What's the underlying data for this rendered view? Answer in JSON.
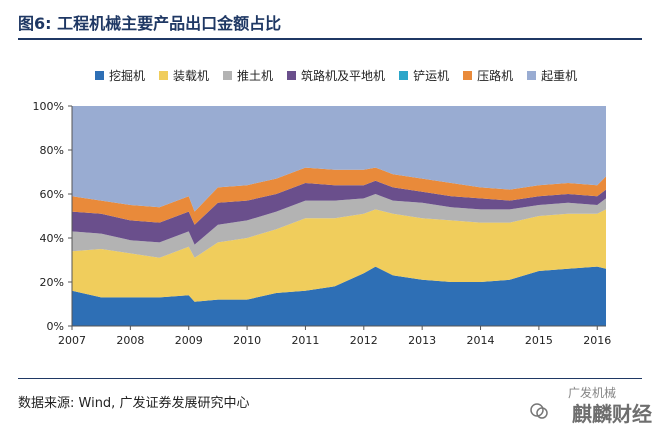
{
  "figure": {
    "title": "图6:  工程机械主要产品出口金额占比",
    "source": "数据来源: Wind, 广发证券发展研究中心",
    "watermark_main": "麒麟财经",
    "watermark_small": "广发机械"
  },
  "chart_data": {
    "type": "area",
    "stacked": true,
    "percent": true,
    "title": "",
    "xlabel": "",
    "ylabel": "",
    "ylim": [
      0,
      100
    ],
    "yticks": [
      "0%",
      "20%",
      "40%",
      "60%",
      "80%",
      "100%"
    ],
    "xticks": [
      "2007",
      "2008",
      "2009",
      "2010",
      "2011",
      "2012",
      "2013",
      "2014",
      "2015",
      "2016"
    ],
    "grid": true,
    "legend_position": "top",
    "x": [
      2007.0,
      2007.5,
      2008.0,
      2008.5,
      2009.0,
      2009.1,
      2009.5,
      2010.0,
      2010.5,
      2011.0,
      2011.5,
      2012.0,
      2012.2,
      2012.5,
      2013.0,
      2013.5,
      2014.0,
      2014.5,
      2015.0,
      2015.5,
      2016.0,
      2016.15
    ],
    "series": [
      {
        "name": "挖掘机",
        "color": "#2e6fb5",
        "values": [
          16,
          13,
          13,
          13,
          14,
          11,
          12,
          12,
          15,
          16,
          18,
          24,
          27,
          23,
          21,
          20,
          20,
          21,
          25,
          26,
          27,
          26
        ]
      },
      {
        "name": "装载机",
        "color": "#f0cd5c",
        "values": [
          18,
          22,
          20,
          18,
          22,
          20,
          26,
          28,
          29,
          33,
          31,
          27,
          26,
          28,
          28,
          28,
          27,
          26,
          25,
          25,
          24,
          27
        ]
      },
      {
        "name": "推土机",
        "color": "#b3b3b3",
        "values": [
          9,
          7,
          6,
          7,
          7,
          6,
          8,
          8,
          8,
          8,
          8,
          7,
          7,
          6,
          7,
          6,
          6,
          6,
          5,
          5,
          4,
          5
        ]
      },
      {
        "name": "筑路机及平地机",
        "color": "#6a4f8c",
        "values": [
          9,
          9,
          9,
          9,
          9,
          9,
          10,
          9,
          8,
          8,
          7,
          6,
          6,
          6,
          5,
          5,
          5,
          4,
          4,
          4,
          4,
          4
        ]
      },
      {
        "name": "铲运机",
        "color": "#2ca6c9",
        "values": [
          0,
          0,
          0,
          0,
          0,
          0,
          0,
          0,
          0,
          0,
          0,
          0,
          0,
          0,
          0,
          0,
          0,
          0,
          0,
          0,
          0,
          0
        ]
      },
      {
        "name": "压路机",
        "color": "#e98a3a",
        "values": [
          7,
          6,
          7,
          7,
          7,
          6,
          7,
          7,
          7,
          7,
          7,
          7,
          6,
          6,
          6,
          6,
          5,
          5,
          5,
          5,
          5,
          6
        ]
      },
      {
        "name": "起重机",
        "color": "#99acd2",
        "values": [
          41,
          43,
          45,
          46,
          41,
          48,
          37,
          36,
          33,
          28,
          29,
          29,
          28,
          31,
          33,
          35,
          37,
          38,
          36,
          35,
          36,
          32
        ]
      }
    ]
  }
}
